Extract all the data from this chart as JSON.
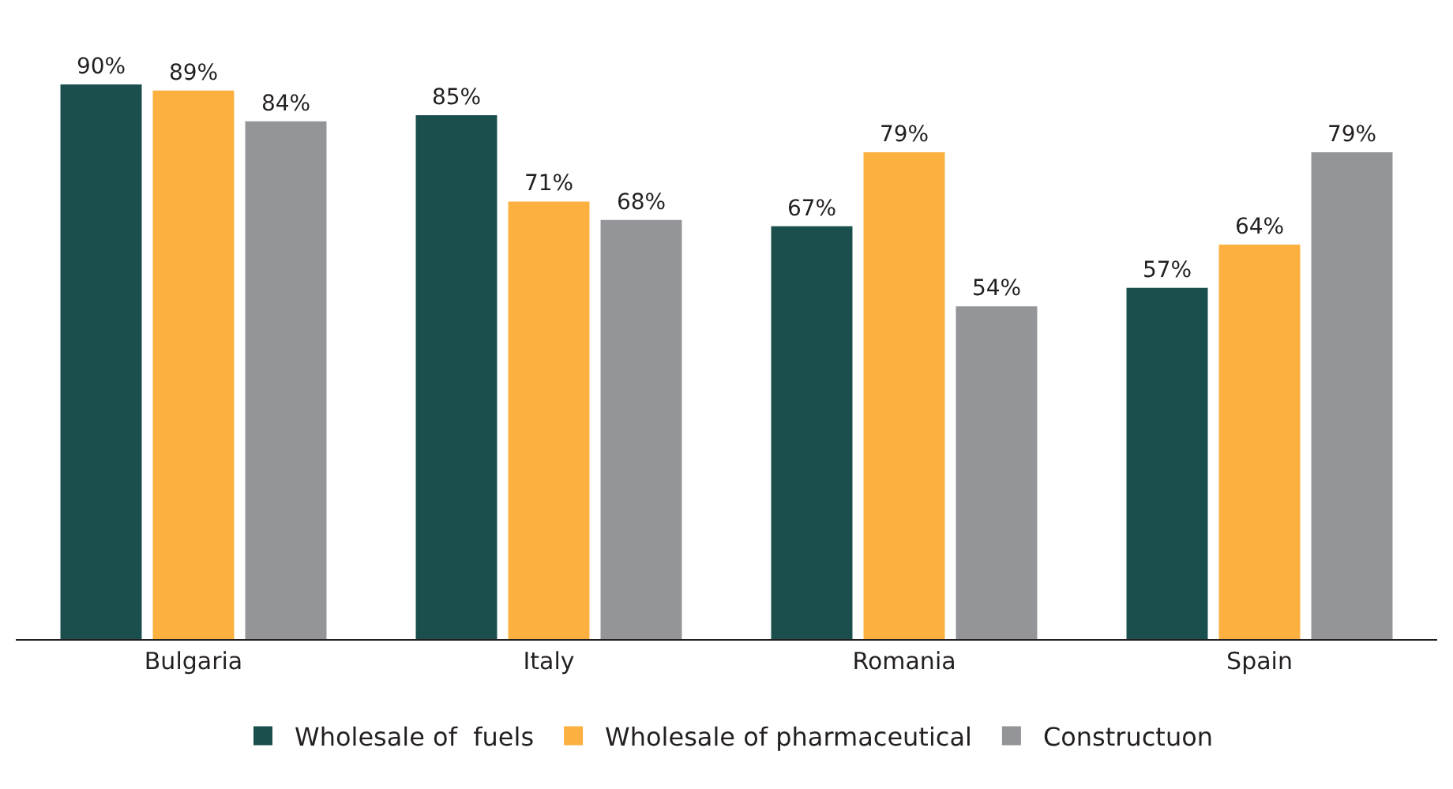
{
  "chart_data": {
    "type": "bar",
    "categories": [
      "Bulgaria",
      "Italy",
      "Romania",
      "Spain"
    ],
    "series": [
      {
        "name": "Wholesale of  fuels",
        "color": "#1b4f4d",
        "values": [
          90,
          85,
          67,
          57
        ],
        "value_labels": [
          "90%",
          "85%",
          "67%",
          "57%"
        ]
      },
      {
        "name": "Wholesale of pharmaceutical",
        "color": "#fbb040",
        "values": [
          89,
          71,
          79,
          64
        ],
        "value_labels": [
          "89%",
          "71%",
          "79%",
          "64%"
        ]
      },
      {
        "name": "Constructuon",
        "color": "#939598",
        "values": [
          84,
          68,
          54,
          79
        ],
        "value_labels": [
          "84%",
          "68%",
          "54%",
          "79%"
        ]
      }
    ],
    "legend": "bottom",
    "grid": false
  }
}
